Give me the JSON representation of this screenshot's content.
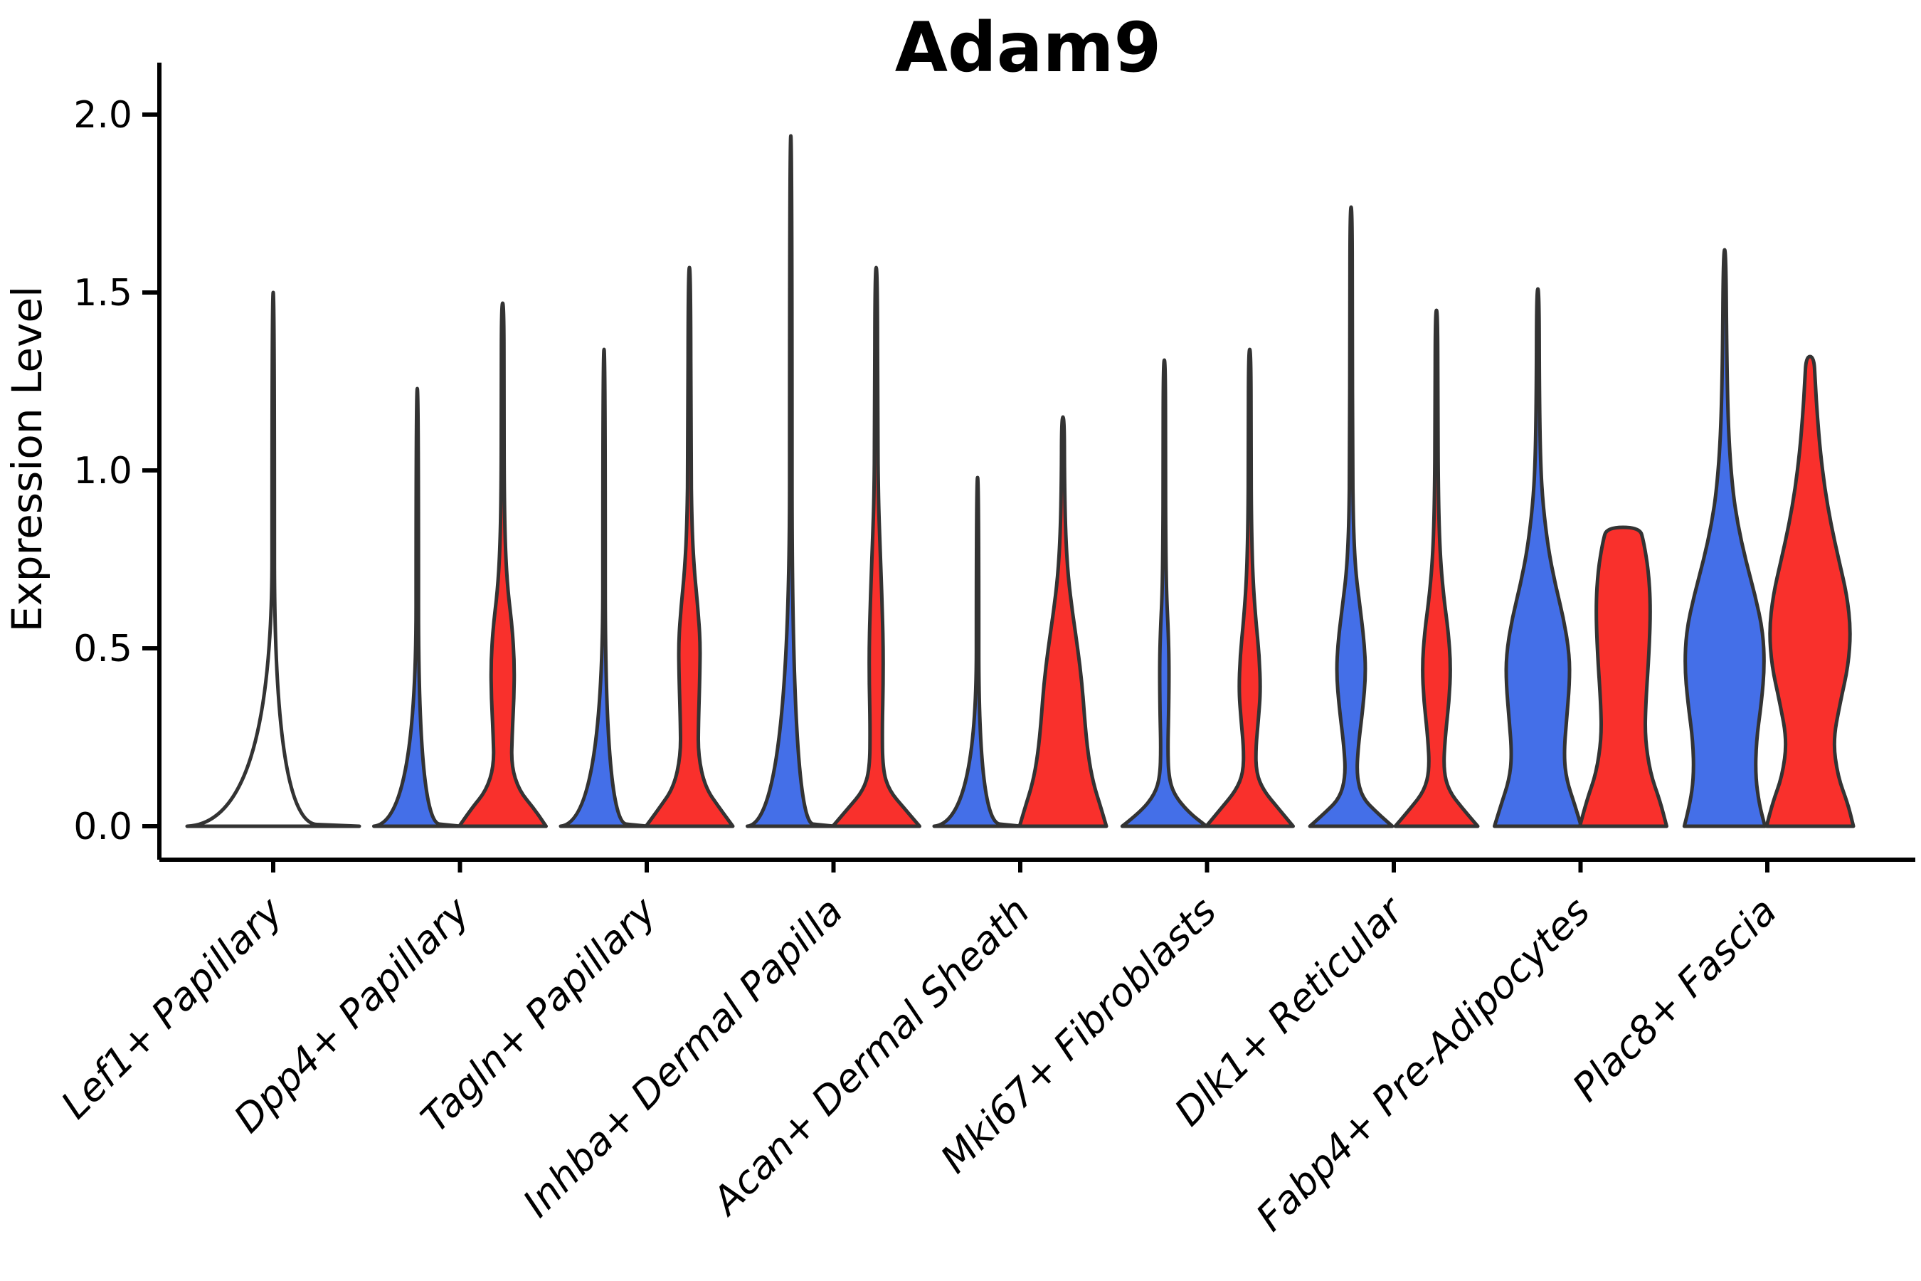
{
  "chart_data": {
    "type": "violin",
    "title": "Adam9",
    "ylabel": "Expression Level",
    "xlabel": "",
    "ylim": [
      0,
      2
    ],
    "grid": false,
    "legend": "none",
    "yticks": [
      0,
      0.5,
      1,
      1.5,
      2
    ],
    "ytick_labels": [
      "0.0",
      "0.5",
      "1.0",
      "1.5",
      "2.0"
    ],
    "categories": [
      "Lef1+ Papillary",
      "Dpp4+ Papillary",
      "Tagln+ Papillary",
      "Inhba+ Dermal Papilla",
      "Acan+ Dermal Sheath",
      "Mki67+ Fibroblasts",
      "Dlk1+ Reticular",
      "Fabp4+ Pre-Adipocytes",
      "Plac8+ Fascia"
    ],
    "split_colors": {
      "blue": "#446FE8",
      "red": "#F9302C"
    },
    "outline_color": "#333333",
    "axis_color": "#000000",
    "violins": [
      {
        "category": "Lef1+ Papillary",
        "split": "single",
        "max_expression": 1.5,
        "zero_inflated": true,
        "profile": [
          [
            0,
            1
          ],
          [
            0.01,
            0.014
          ],
          [
            1.5,
            0.014
          ]
        ]
      },
      {
        "category": "Dpp4+ Papillary",
        "split": "blue",
        "max_expression": 1.23,
        "zero_inflated": true,
        "profile": [
          [
            0,
            1
          ],
          [
            0.012,
            0.028
          ],
          [
            1.23,
            0.028
          ]
        ]
      },
      {
        "category": "Dpp4+ Papillary",
        "split": "red",
        "max_expression": 1.47,
        "zero_inflated": false,
        "profile": [
          [
            0,
            1
          ],
          [
            0.05,
            0.72
          ],
          [
            0.1,
            0.38
          ],
          [
            0.17,
            0.2
          ],
          [
            0.26,
            0.22
          ],
          [
            0.36,
            0.26
          ],
          [
            0.46,
            0.27
          ],
          [
            0.56,
            0.22
          ],
          [
            0.66,
            0.12
          ],
          [
            0.78,
            0.06
          ],
          [
            0.95,
            0.035
          ],
          [
            1.2,
            0.03
          ],
          [
            1.47,
            0.028
          ]
        ]
      },
      {
        "category": "Tagln+ Papillary",
        "split": "blue",
        "max_expression": 1.34,
        "zero_inflated": true,
        "profile": [
          [
            0,
            1
          ],
          [
            0.012,
            0.028
          ],
          [
            1.34,
            0.028
          ]
        ]
      },
      {
        "category": "Tagln+ Papillary",
        "split": "red",
        "max_expression": 1.57,
        "zero_inflated": false,
        "profile": [
          [
            0,
            1
          ],
          [
            0.05,
            0.7
          ],
          [
            0.11,
            0.36
          ],
          [
            0.2,
            0.2
          ],
          [
            0.3,
            0.21
          ],
          [
            0.42,
            0.24
          ],
          [
            0.52,
            0.25
          ],
          [
            0.62,
            0.19
          ],
          [
            0.72,
            0.11
          ],
          [
            0.85,
            0.055
          ],
          [
            1.05,
            0.035
          ],
          [
            1.57,
            0.028
          ]
        ]
      },
      {
        "category": "Inhba+ Dermal Papilla",
        "split": "blue",
        "max_expression": 1.94,
        "zero_inflated": true,
        "profile": [
          [
            0,
            1
          ],
          [
            0.012,
            0.028
          ],
          [
            1.94,
            0.028
          ]
        ]
      },
      {
        "category": "Inhba+ Dermal Papilla",
        "split": "red",
        "max_expression": 1.57,
        "zero_inflated": false,
        "profile": [
          [
            0,
            1
          ],
          [
            0.05,
            0.65
          ],
          [
            0.1,
            0.3
          ],
          [
            0.16,
            0.15
          ],
          [
            0.28,
            0.14
          ],
          [
            0.4,
            0.16
          ],
          [
            0.52,
            0.16
          ],
          [
            0.65,
            0.13
          ],
          [
            0.78,
            0.09
          ],
          [
            0.92,
            0.05
          ],
          [
            1.12,
            0.035
          ],
          [
            1.57,
            0.028
          ]
        ]
      },
      {
        "category": "Acan+ Dermal Sheath",
        "split": "blue",
        "max_expression": 0.98,
        "zero_inflated": true,
        "profile": [
          [
            0,
            1
          ],
          [
            0.012,
            0.028
          ],
          [
            0.98,
            0.028
          ]
        ]
      },
      {
        "category": "Acan+ Dermal Sheath",
        "split": "red",
        "max_expression": 1.15,
        "zero_inflated": false,
        "profile": [
          [
            0,
            1
          ],
          [
            0.05,
            0.88
          ],
          [
            0.12,
            0.7
          ],
          [
            0.2,
            0.58
          ],
          [
            0.3,
            0.5
          ],
          [
            0.4,
            0.44
          ],
          [
            0.5,
            0.34
          ],
          [
            0.6,
            0.22
          ],
          [
            0.7,
            0.12
          ],
          [
            0.82,
            0.06
          ],
          [
            0.98,
            0.035
          ],
          [
            1.15,
            0.03
          ]
        ]
      },
      {
        "category": "Mki67+ Fibroblasts",
        "split": "blue",
        "max_expression": 1.31,
        "zero_inflated": false,
        "profile": [
          [
            0,
            0.97
          ],
          [
            0.04,
            0.55
          ],
          [
            0.09,
            0.22
          ],
          [
            0.14,
            0.1
          ],
          [
            0.22,
            0.08
          ],
          [
            0.32,
            0.1
          ],
          [
            0.45,
            0.11
          ],
          [
            0.55,
            0.09
          ],
          [
            0.65,
            0.05
          ],
          [
            0.8,
            0.032
          ],
          [
            1.0,
            0.028
          ],
          [
            1.31,
            0.025
          ]
        ]
      },
      {
        "category": "Mki67+ Fibroblasts",
        "split": "red",
        "max_expression": 1.34,
        "zero_inflated": false,
        "profile": [
          [
            0,
            1
          ],
          [
            0.05,
            0.66
          ],
          [
            0.1,
            0.32
          ],
          [
            0.15,
            0.15
          ],
          [
            0.22,
            0.14
          ],
          [
            0.3,
            0.2
          ],
          [
            0.38,
            0.25
          ],
          [
            0.48,
            0.22
          ],
          [
            0.58,
            0.14
          ],
          [
            0.7,
            0.07
          ],
          [
            0.85,
            0.04
          ],
          [
            1.05,
            0.03
          ],
          [
            1.34,
            0.028
          ]
        ]
      },
      {
        "category": "Dlk1+ Reticular",
        "split": "blue",
        "max_expression": 1.74,
        "zero_inflated": false,
        "profile": [
          [
            0,
            0.95
          ],
          [
            0.04,
            0.58
          ],
          [
            0.08,
            0.26
          ],
          [
            0.14,
            0.13
          ],
          [
            0.22,
            0.16
          ],
          [
            0.33,
            0.27
          ],
          [
            0.43,
            0.34
          ],
          [
            0.52,
            0.3
          ],
          [
            0.62,
            0.2
          ],
          [
            0.72,
            0.1
          ],
          [
            0.85,
            0.05
          ],
          [
            1.05,
            0.033
          ],
          [
            1.4,
            0.028
          ],
          [
            1.74,
            0.025
          ]
        ]
      },
      {
        "category": "Dlk1+ Reticular",
        "split": "red",
        "max_expression": 1.45,
        "zero_inflated": false,
        "profile": [
          [
            0,
            0.95
          ],
          [
            0.05,
            0.6
          ],
          [
            0.1,
            0.28
          ],
          [
            0.16,
            0.16
          ],
          [
            0.25,
            0.2
          ],
          [
            0.35,
            0.29
          ],
          [
            0.45,
            0.33
          ],
          [
            0.55,
            0.27
          ],
          [
            0.65,
            0.16
          ],
          [
            0.77,
            0.08
          ],
          [
            0.92,
            0.045
          ],
          [
            1.15,
            0.032
          ],
          [
            1.45,
            0.028
          ]
        ]
      },
      {
        "category": "Fabp4+ Pre-Adipocytes",
        "split": "blue",
        "max_expression": 1.51,
        "zero_inflated": false,
        "profile": [
          [
            0,
            1
          ],
          [
            0.06,
            0.85
          ],
          [
            0.13,
            0.66
          ],
          [
            0.2,
            0.6
          ],
          [
            0.3,
            0.66
          ],
          [
            0.4,
            0.73
          ],
          [
            0.48,
            0.73
          ],
          [
            0.58,
            0.6
          ],
          [
            0.68,
            0.4
          ],
          [
            0.78,
            0.24
          ],
          [
            0.9,
            0.12
          ],
          [
            1.02,
            0.06
          ],
          [
            1.22,
            0.035
          ],
          [
            1.51,
            0.028
          ]
        ]
      },
      {
        "category": "Fabp4+ Pre-Adipocytes",
        "split": "red",
        "max_expression": 0.84,
        "zero_inflated": false,
        "truncated_top": true,
        "profile": [
          [
            0,
            1
          ],
          [
            0.07,
            0.85
          ],
          [
            0.15,
            0.62
          ],
          [
            0.25,
            0.5
          ],
          [
            0.35,
            0.52
          ],
          [
            0.5,
            0.6
          ],
          [
            0.62,
            0.63
          ],
          [
            0.72,
            0.58
          ],
          [
            0.8,
            0.47
          ],
          [
            0.84,
            0.38
          ]
        ]
      },
      {
        "category": "Plac8+ Fascia",
        "split": "blue",
        "max_expression": 1.62,
        "zero_inflated": false,
        "profile": [
          [
            0,
            0.93
          ],
          [
            0.06,
            0.8
          ],
          [
            0.14,
            0.71
          ],
          [
            0.24,
            0.73
          ],
          [
            0.35,
            0.85
          ],
          [
            0.45,
            0.92
          ],
          [
            0.55,
            0.88
          ],
          [
            0.65,
            0.7
          ],
          [
            0.75,
            0.48
          ],
          [
            0.85,
            0.3
          ],
          [
            0.95,
            0.18
          ],
          [
            1.1,
            0.09
          ],
          [
            1.3,
            0.05
          ],
          [
            1.62,
            0.03
          ]
        ]
      },
      {
        "category": "Plac8+ Fascia",
        "split": "red",
        "max_expression": 1.32,
        "zero_inflated": false,
        "profile": [
          [
            0,
            1
          ],
          [
            0.06,
            0.88
          ],
          [
            0.14,
            0.64
          ],
          [
            0.24,
            0.53
          ],
          [
            0.35,
            0.7
          ],
          [
            0.45,
            0.88
          ],
          [
            0.55,
            0.94
          ],
          [
            0.65,
            0.85
          ],
          [
            0.75,
            0.66
          ],
          [
            0.85,
            0.48
          ],
          [
            0.95,
            0.34
          ],
          [
            1.05,
            0.24
          ],
          [
            1.15,
            0.17
          ],
          [
            1.25,
            0.12
          ],
          [
            1.32,
            0.09
          ]
        ]
      }
    ]
  }
}
